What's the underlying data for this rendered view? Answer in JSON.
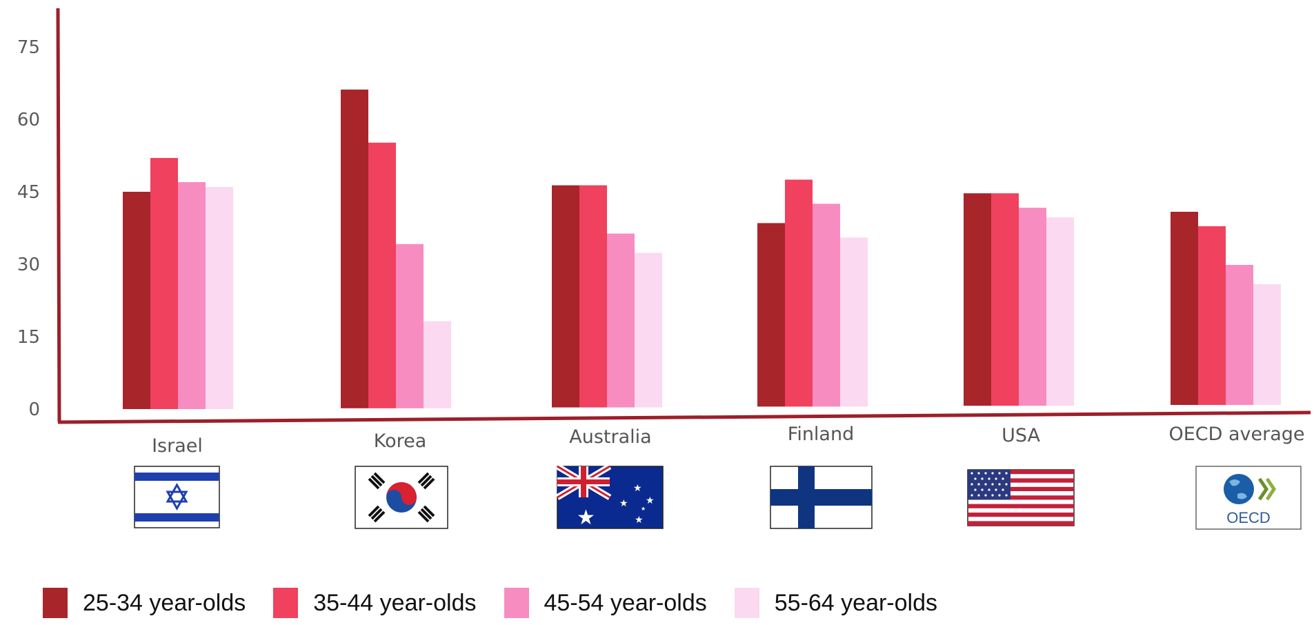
{
  "chart_data": {
    "type": "bar",
    "title": "",
    "xlabel": "",
    "ylabel": "",
    "ylim": [
      0,
      78
    ],
    "yticks": [
      0,
      15,
      30,
      45,
      60,
      75
    ],
    "grid": false,
    "legend_position": "bottom-left",
    "categories": [
      "Israel",
      "Korea",
      "Australia",
      "Finland",
      "USA",
      "OECD average"
    ],
    "flag_icons": [
      "israel-flag-icon",
      "korea-flag-icon",
      "australia-flag-icon",
      "finland-flag-icon",
      "usa-flag-icon",
      "oecd-logo-icon"
    ],
    "oecd_logo_text": "OECD",
    "series": [
      {
        "name": "25-34 year-olds",
        "color": "#a8252a",
        "values": [
          45,
          66,
          46,
          38,
          44,
          40
        ]
      },
      {
        "name": "35-44 year-olds",
        "color": "#f0415e",
        "values": [
          52,
          55,
          46,
          47,
          44,
          37
        ]
      },
      {
        "name": "45-54 year-olds",
        "color": "#f78cc1",
        "values": [
          47,
          34,
          36,
          42,
          41,
          29
        ]
      },
      {
        "name": "55-64 year-olds",
        "color": "#fbd9f0",
        "values": [
          46,
          18,
          32,
          35,
          39,
          25
        ]
      }
    ]
  }
}
